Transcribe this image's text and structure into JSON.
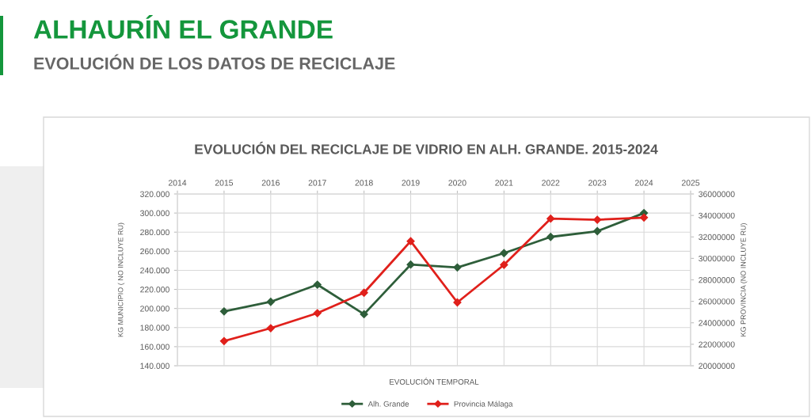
{
  "chart_data": {
    "type": "line",
    "title": "ALHAURÍN EL GRANDE",
    "subtitle": "EVOLUCIÓN DE LOS DATOS DE RECICLAJE",
    "annotations": [
      "EVOLUCIÓN DEL RECICLAJE DE VIDRIO EN ALH. GRANDE. 2015-2024"
    ],
    "xlabel": "EVOLUCIÓN TEMPORAL",
    "ylabel": "KG MUNICIPIO ( NO INCLUYE RU)",
    "y2label": "KG PROVINCIA (NO INCLUYE RU)",
    "x": [
      2015,
      2016,
      2017,
      2018,
      2019,
      2020,
      2021,
      2022,
      2023,
      2024
    ],
    "series": [
      {
        "name": "Alh. Grande",
        "color": "#2e5e3a",
        "values": [
          197000,
          207000,
          225000,
          194000,
          246000,
          243000,
          258000,
          275000,
          281000,
          300000
        ]
      },
      {
        "name": "Provincia Málaga",
        "color": "#e0201b",
        "axis": "y2",
        "values": [
          22300000,
          23500000,
          24900000,
          26800000,
          31600000,
          25900000,
          29400000,
          33700000,
          33600000,
          33800000
        ]
      }
    ],
    "xlim": [
      2014,
      2025
    ],
    "xticks": [
      2014,
      2015,
      2016,
      2017,
      2018,
      2019,
      2020,
      2021,
      2022,
      2023,
      2024,
      2025
    ],
    "ylim": [
      140000,
      320000
    ],
    "yticks": [
      {
        "value": 140000,
        "label": "140.000"
      },
      {
        "value": 160000,
        "label": "160.000"
      },
      {
        "value": 180000,
        "label": "180.000"
      },
      {
        "value": 200000,
        "label": "200.000"
      },
      {
        "value": 220000,
        "label": "220.000"
      },
      {
        "value": 240000,
        "label": "240.000"
      },
      {
        "value": 260000,
        "label": "260.000"
      },
      {
        "value": 280000,
        "label": "280.000"
      },
      {
        "value": 300000,
        "label": "300.000"
      },
      {
        "value": 320000,
        "label": "320.000"
      }
    ],
    "y2lim": [
      20000000,
      36000000
    ],
    "y2ticks": [
      20000000,
      22000000,
      24000000,
      26000000,
      28000000,
      30000000,
      32000000,
      34000000,
      36000000
    ],
    "grid": true,
    "legend": "bottom",
    "marker": "diamond",
    "line_style": "solid"
  }
}
